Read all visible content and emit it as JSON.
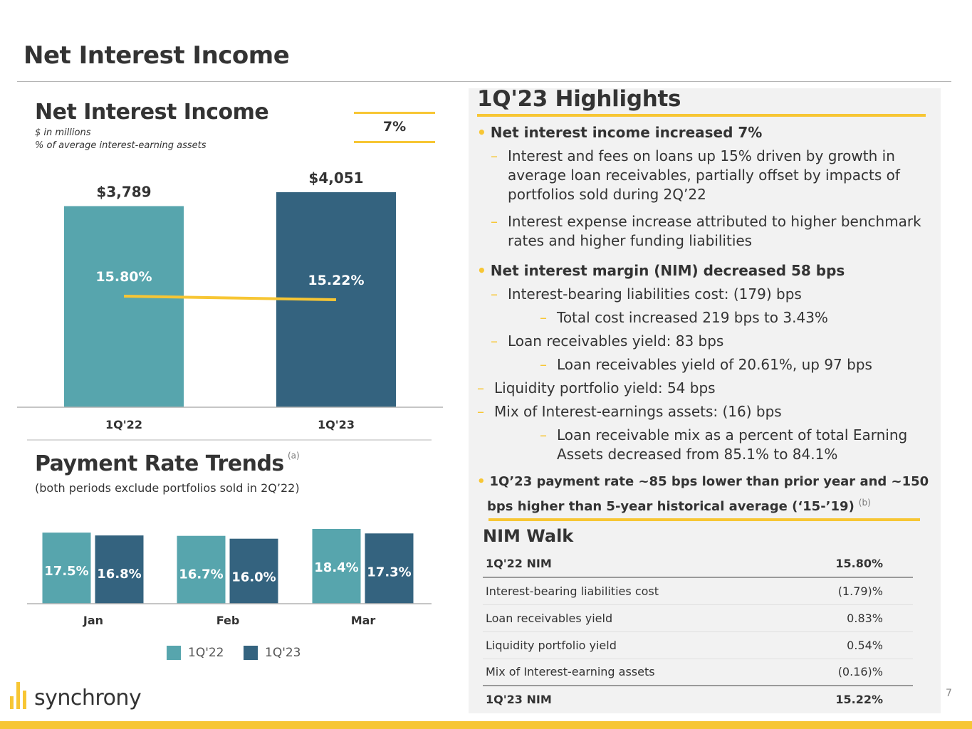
{
  "page": {
    "title": "Net Interest Income",
    "page_number": "7"
  },
  "brand": {
    "logo_text": "synchrony",
    "accent": "#f7c634",
    "teal": "#57a5ad",
    "navy": "#34637f"
  },
  "nii_chart": {
    "title": "Net Interest Income",
    "subtitle_1": "$ in millions",
    "subtitle_2": "% of average interest-earning assets",
    "growth_label": "7%"
  },
  "payment_rate": {
    "title": "Payment Rate Trends",
    "note": "(a)",
    "subtitle": "(both periods exclude portfolios sold in 2Q’22)"
  },
  "chart_data": [
    {
      "type": "bar",
      "title": "Net Interest Income",
      "categories": [
        "1Q'22",
        "1Q'23"
      ],
      "values": [
        3789,
        4051
      ],
      "value_labels": [
        "$3,789",
        "$4,051"
      ],
      "ylim": [
        0,
        4500
      ],
      "line_series": {
        "values": [
          15.8,
          15.22
        ],
        "labels": [
          "15.80%",
          "15.22%"
        ],
        "color": "#f7c634"
      },
      "bar_colors": [
        "#57a5ad",
        "#34637f"
      ]
    },
    {
      "type": "bar",
      "title": "Payment Rate Trends",
      "categories": [
        "Jan",
        "Feb",
        "Mar"
      ],
      "series": [
        {
          "name": "1Q'22",
          "values": [
            17.5,
            16.7,
            18.4
          ],
          "labels": [
            "17.5%",
            "16.7%",
            "18.4%"
          ],
          "color": "#57a5ad"
        },
        {
          "name": "1Q'23",
          "values": [
            16.8,
            16.0,
            17.3
          ],
          "labels": [
            "16.8%",
            "16.0%",
            "17.3%"
          ],
          "color": "#34637f"
        }
      ],
      "legend_position": "bottom"
    }
  ],
  "highlights": {
    "title": "1Q'23 Highlights",
    "lines": [
      {
        "text": "Net interest income increased 7%",
        "style": "bullet"
      },
      {
        "text": "Interest and fees on loans up 15% driven by growth in",
        "style": "dash1"
      },
      {
        "text": "average loan receivables, partially offset by impacts of",
        "style": "cont1"
      },
      {
        "text": "portfolios sold during 2Q’22",
        "style": "cont1"
      },
      {
        "text": "Interest expense increase attributed to higher benchmark",
        "style": "dash1"
      },
      {
        "text": "rates and higher funding liabilities",
        "style": "cont1"
      },
      {
        "text": "Net interest margin (NIM) decreased 58 bps",
        "style": "bullet"
      },
      {
        "text": "Interest-bearing liabilities cost: (179) bps",
        "style": "dash1"
      },
      {
        "text": "Total cost increased 219 bps to 3.43%",
        "style": "dash2"
      },
      {
        "text": "Loan receivables yield: 83 bps",
        "style": "dash1"
      },
      {
        "text": "Loan receivables yield of 20.61%, up 97 bps",
        "style": "dash2"
      },
      {
        "text": "Liquidity portfolio yield: 54 bps",
        "style": "dash0"
      },
      {
        "text": "Mix of Interest-earnings assets: (16) bps",
        "style": "dash0"
      },
      {
        "text": "Loan receivable mix as a percent of total Earning",
        "style": "dash2"
      },
      {
        "text": "Assets decreased from 85.1% to 84.1%",
        "style": "cont2"
      },
      {
        "text": "1Q’23 payment rate ~85 bps lower than prior year and ~150",
        "style": "bullet_small"
      },
      {
        "text": "bps higher than 5-year historical average (‘15-’19)",
        "style": "cont_small",
        "note": "(b)"
      }
    ]
  },
  "nim_walk": {
    "title": "NIM Walk",
    "rows": [
      {
        "label": "1Q'22 NIM",
        "value": "15.80%",
        "kind": "head"
      },
      {
        "label": "Interest-bearing liabilities cost",
        "value": "(1.79)%",
        "kind": "body"
      },
      {
        "label": "Loan receivables yield",
        "value": "0.83%",
        "kind": "body"
      },
      {
        "label": "Liquidity portfolio yield",
        "value": "0.54%",
        "kind": "body"
      },
      {
        "label": "Mix of Interest-earning assets",
        "value": "(0.16)%",
        "kind": "body"
      },
      {
        "label": "1Q'23 NIM",
        "value": "15.22%",
        "kind": "foot"
      }
    ]
  }
}
